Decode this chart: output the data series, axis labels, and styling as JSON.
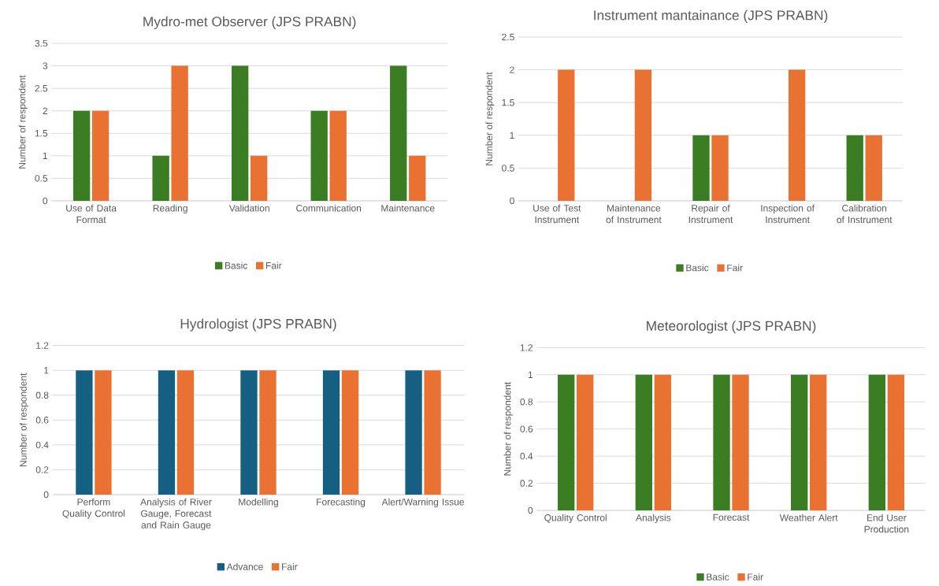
{
  "chart_data": [
    {
      "type": "bar",
      "title": "Mydro-met Observer (JPS PRABN)",
      "ylabel": "Number of respondent",
      "categories": [
        "Use of Data Format",
        "Reading",
        "Validation",
        "Communication",
        "Maintenance"
      ],
      "series": [
        {
          "name": "Basic",
          "color": "#3a7d22",
          "values": [
            2,
            1,
            3,
            2,
            3
          ]
        },
        {
          "name": "Fair",
          "color": "#e97132",
          "values": [
            2,
            3,
            1,
            2,
            1
          ]
        }
      ],
      "ylim": [
        0,
        3.5
      ],
      "yticks": [
        0,
        0.5,
        1,
        1.5,
        2,
        2.5,
        3,
        3.5
      ],
      "grid": "y",
      "legend": "bottom"
    },
    {
      "type": "bar",
      "title": "Instrument mantainance (JPS PRABN)",
      "ylabel": "Number of respondent",
      "categories": [
        "Use of Test Instrument",
        "Maintenance of Instrument",
        "Repair of Instrument",
        "Inspection of Instrument",
        "Calibration of Instrument"
      ],
      "series": [
        {
          "name": "Basic",
          "color": "#3a7d22",
          "values": [
            null,
            null,
            1,
            null,
            1
          ]
        },
        {
          "name": "Fair",
          "color": "#e97132",
          "values": [
            2,
            2,
            1,
            2,
            1
          ]
        }
      ],
      "ylim": [
        0,
        2.5
      ],
      "yticks": [
        0,
        0.5,
        1,
        1.5,
        2,
        2.5
      ],
      "grid": "y",
      "legend": "bottom"
    },
    {
      "type": "bar",
      "title": "Hydrologist (JPS PRABN)",
      "ylabel": "Number of respondent",
      "categories": [
        "Perform Quality Control",
        "Analysis of River Gauge, Forecast and Rain Gauge",
        "Modelling",
        "Forecasting",
        "Alert/Warning Issue"
      ],
      "series": [
        {
          "name": "Advance",
          "color": "#156082",
          "values": [
            1,
            1,
            1,
            1,
            1
          ]
        },
        {
          "name": "Fair",
          "color": "#e97132",
          "values": [
            1,
            1,
            1,
            1,
            1
          ]
        }
      ],
      "ylim": [
        0,
        1.2
      ],
      "yticks": [
        0,
        0.2,
        0.4,
        0.6,
        0.8,
        1,
        1.2
      ],
      "grid": "y",
      "legend": "bottom"
    },
    {
      "type": "bar",
      "title": "Meteorologist (JPS PRABN)",
      "ylabel": "Number of respondent",
      "categories": [
        "Quality Control",
        "Analysis",
        "Forecast",
        "Weather Alert",
        "End User Production"
      ],
      "series": [
        {
          "name": "Basic",
          "color": "#3a7d22",
          "values": [
            1,
            1,
            1,
            1,
            1
          ]
        },
        {
          "name": "Fair",
          "color": "#e97132",
          "values": [
            1,
            1,
            1,
            1,
            1
          ]
        }
      ],
      "ylim": [
        0,
        1.2
      ],
      "yticks": [
        0,
        0.2,
        0.4,
        0.6,
        0.8,
        1,
        1.2
      ],
      "grid": "y",
      "legend": "bottom"
    }
  ]
}
